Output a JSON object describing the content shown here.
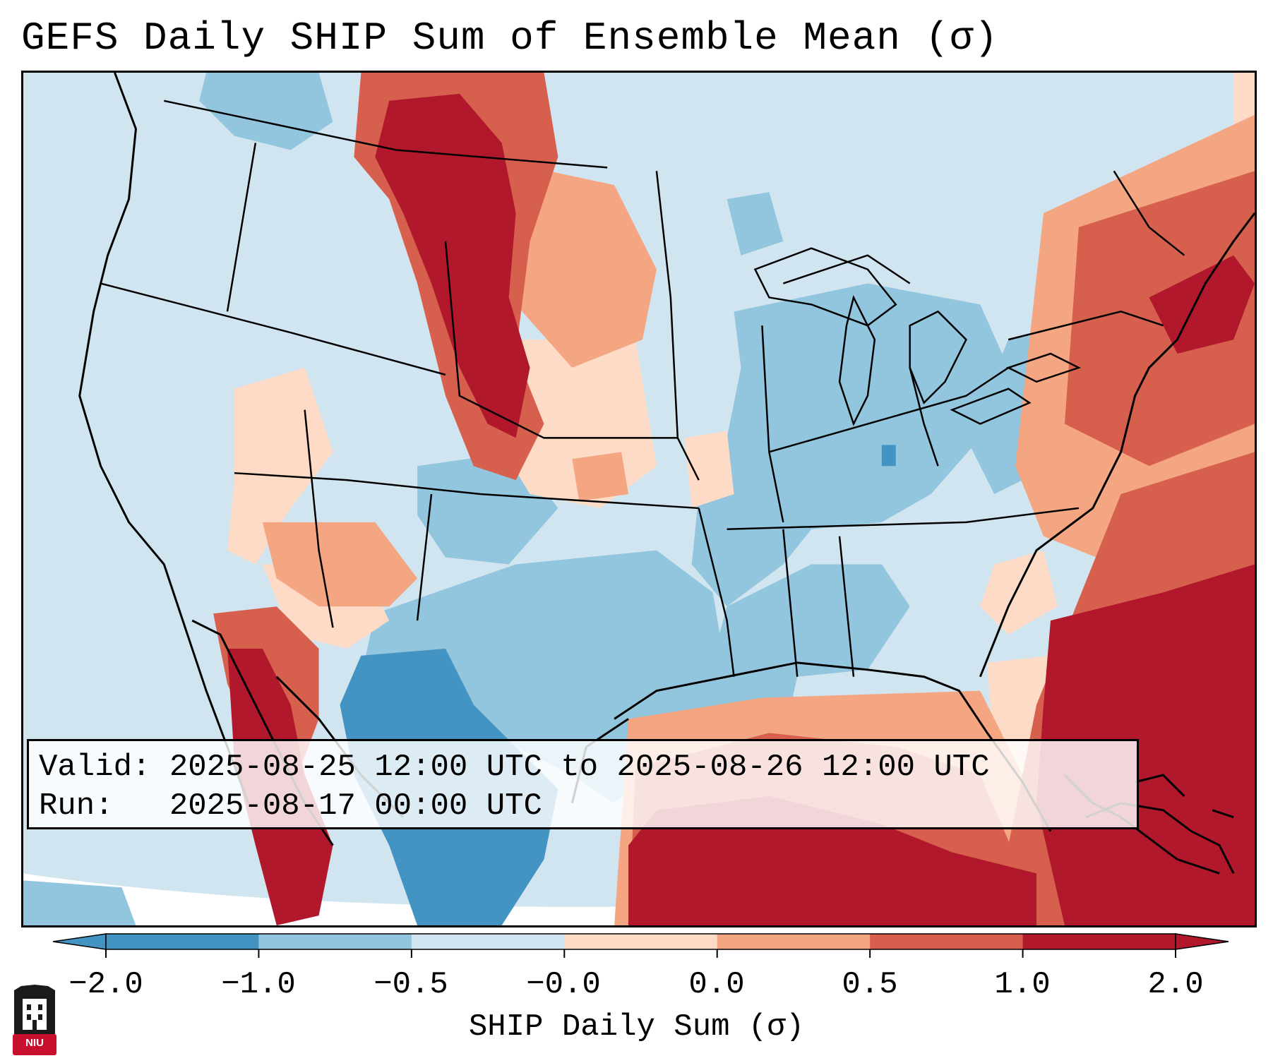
{
  "title": "GEFS Daily SHIP Sum of Ensemble Mean (σ)",
  "info": {
    "valid_line": "Valid: 2025-08-25 12:00 UTC to 2025-08-26 12:00 UTC",
    "run_line": "Run:   2025-08-17 00:00 UTC"
  },
  "colorbar": {
    "label": "SHIP Daily Sum (σ)",
    "tick_labels": [
      "−2.0",
      "−1.0",
      "−0.5",
      "−0.0",
      "0.0",
      "0.5",
      "1.0",
      "2.0"
    ],
    "colors": [
      "#4393c3",
      "#92c5de",
      "#d1e5f0",
      "#f7f7f7",
      "#fddbc7",
      "#f4a582",
      "#d6604d",
      "#b2182b"
    ]
  },
  "logo": {
    "text": "NIU"
  },
  "legend_colors": {
    "strong_positive": "#b2182b",
    "positive": "#d6604d",
    "weak_positive": "#f4a582",
    "slight_positive": "#fddbc7",
    "slight_negative": "#d1e5f0",
    "negative": "#92c5de",
    "strong_negative": "#4393c3"
  }
}
